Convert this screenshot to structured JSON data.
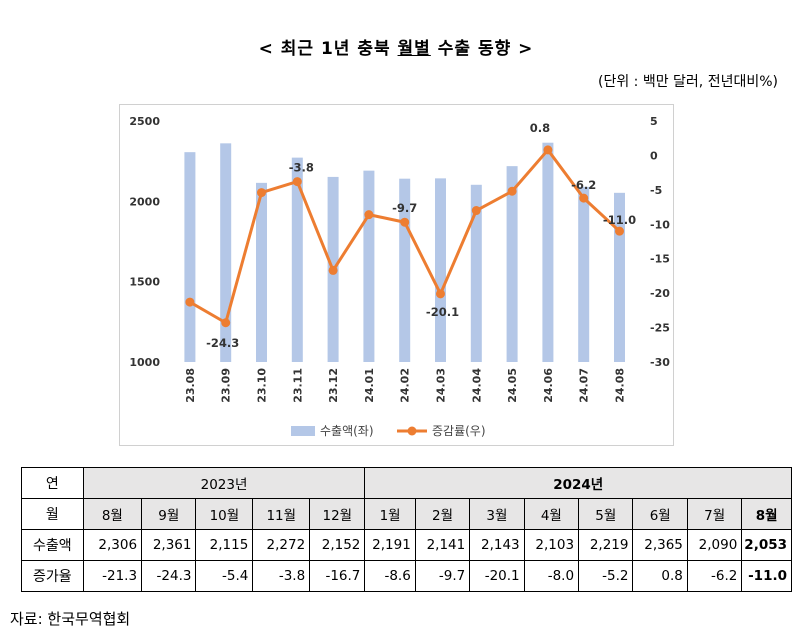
{
  "title_prefix": "< 최근 1년 충북 ",
  "title_underlined": "월별",
  "title_suffix": " 수출 동향 >",
  "unit": "(단위 : 백만 달러, 전년대비%)",
  "chart_data": {
    "type": "bar",
    "categories": [
      "23.08",
      "23.09",
      "23.10",
      "23.11",
      "23.12",
      "24.01",
      "24.02",
      "24.03",
      "24.04",
      "24.05",
      "24.06",
      "24.07",
      "24.08"
    ],
    "series": [
      {
        "name": "수출액(좌)",
        "type": "bar",
        "axis": "left",
        "color": "#b4c7e7",
        "values": [
          2306,
          2361,
          2115,
          2272,
          2152,
          2191,
          2141,
          2143,
          2103,
          2219,
          2365,
          2090,
          2053
        ]
      },
      {
        "name": "증감률(우)",
        "type": "line",
        "axis": "right",
        "color": "#ed7d31",
        "values": [
          -21.3,
          -24.3,
          -5.4,
          -3.8,
          -16.7,
          -8.6,
          -9.7,
          -20.1,
          -8.0,
          -5.2,
          0.8,
          -6.2,
          -11.0
        ]
      }
    ],
    "data_labels": [
      {
        "index": 1,
        "text": "-24.3"
      },
      {
        "index": 3,
        "text": "-3.8"
      },
      {
        "index": 6,
        "text": "-9.7"
      },
      {
        "index": 7,
        "text": "-20.1"
      },
      {
        "index": 10,
        "text": "0.8"
      },
      {
        "index": 11,
        "text": "-6.2"
      },
      {
        "index": 12,
        "text": "-11.0"
      }
    ],
    "ylim_left": [
      1000,
      2500
    ],
    "yticks_left": [
      "2500",
      "2000",
      "1500",
      "1000"
    ],
    "ylim_right": [
      -30,
      5
    ],
    "yticks_right": [
      "5",
      "0",
      "-5",
      "-10",
      "-15",
      "-20",
      "-25",
      "-30"
    ],
    "legend_position": "bottom",
    "grid": false
  },
  "table": {
    "row_labels": {
      "year": "연",
      "month": "월",
      "export": "수출액",
      "change": "증가율"
    },
    "years": [
      "2023년",
      "2024년"
    ],
    "months": [
      "8월",
      "9월",
      "10월",
      "11월",
      "12월",
      "1월",
      "2월",
      "3월",
      "4월",
      "5월",
      "6월",
      "7월",
      "8월"
    ],
    "export": [
      "2,306",
      "2,361",
      "2,115",
      "2,272",
      "2,152",
      "2,191",
      "2,141",
      "2,143",
      "2,103",
      "2,219",
      "2,365",
      "2,090",
      "2,053"
    ],
    "change": [
      "-21.3",
      "-24.3",
      "-5.4",
      "-3.8",
      "-16.7",
      "-8.6",
      "-9.7",
      "-20.1",
      "-8.0",
      "-5.2",
      "0.8",
      "-6.2",
      "-11.0"
    ]
  },
  "source": "자료:  한국무역협회"
}
